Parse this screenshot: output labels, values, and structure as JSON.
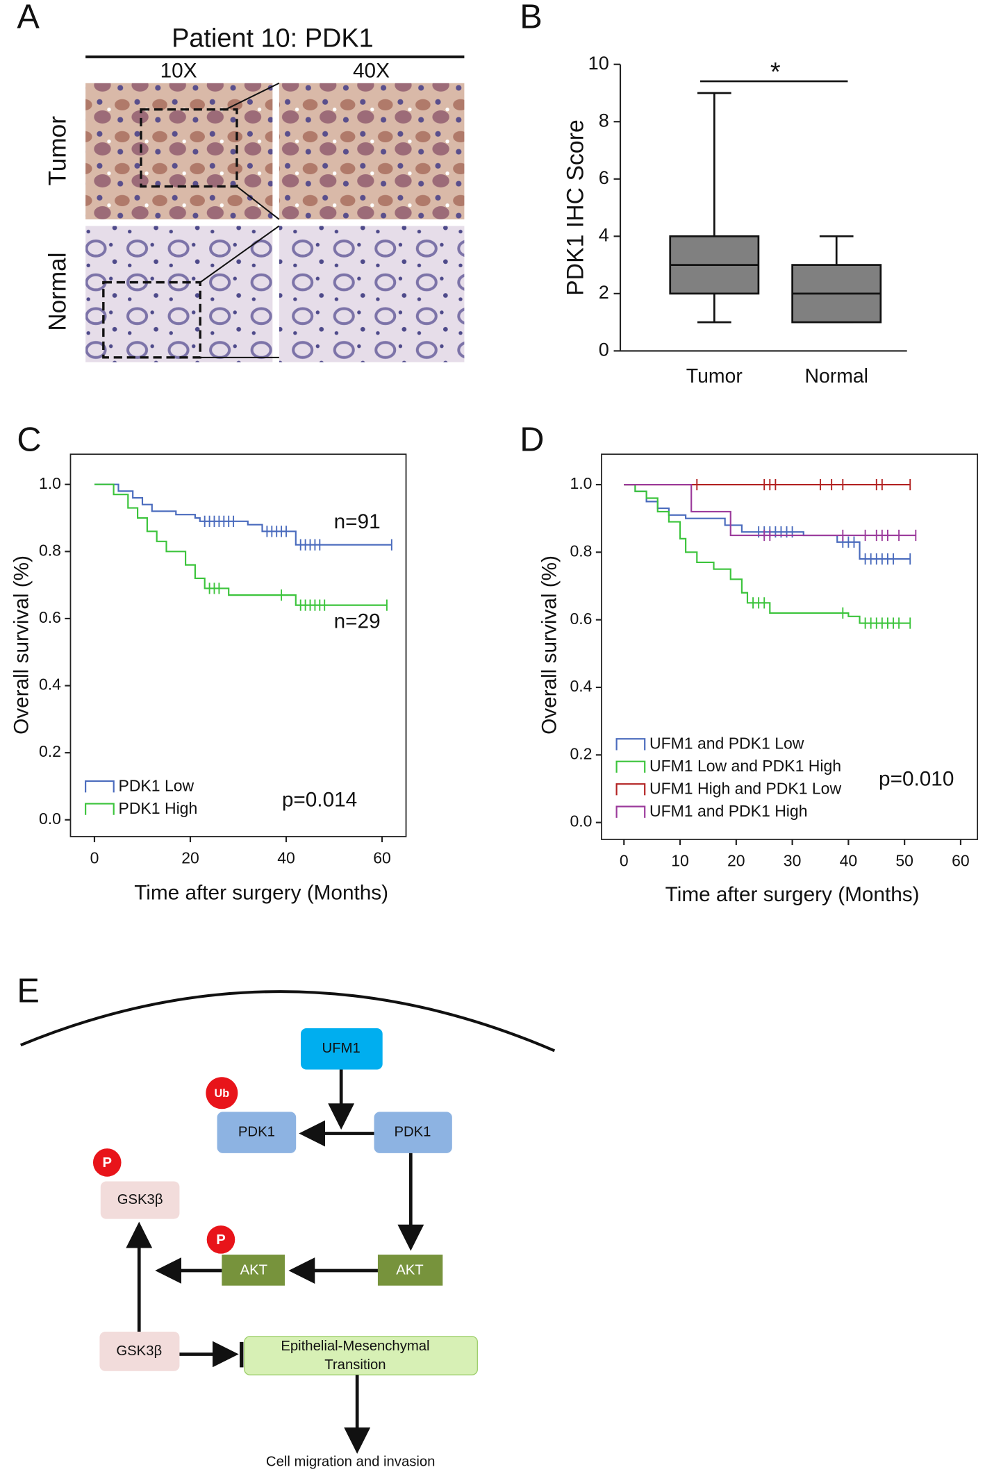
{
  "panel_labels": [
    "A",
    "B",
    "C",
    "D",
    "E"
  ],
  "histology": {
    "title": "Patient 10: PDK1",
    "columns": [
      "10X",
      "40X"
    ],
    "rows": [
      "Tumor",
      "Normal"
    ]
  },
  "chart_data": [
    {
      "type": "box",
      "y_label": "PDK1 IHC Score",
      "categories": [
        "Tumor",
        "Normal"
      ],
      "boxes": [
        {
          "min": 1,
          "q1": 2,
          "median": 3,
          "q3": 4,
          "max": 9
        },
        {
          "min": 1,
          "q1": 1,
          "median": 2,
          "q3": 3,
          "max": 4
        }
      ],
      "color": "#808080",
      "ylim": [
        0,
        10
      ],
      "yticks": [
        0,
        2,
        4,
        6,
        8,
        10
      ],
      "annotation": "*"
    },
    {
      "type": "survival",
      "x_label": "Time after surgery (Months)",
      "y_label": "Overall survival (%)",
      "xlim": [
        -5,
        65
      ],
      "xticks": [
        0,
        20,
        40,
        60
      ],
      "ylim": [
        -0.05,
        1.09
      ],
      "yticks": [
        {
          "value": 0,
          "label": "0.0"
        },
        {
          "value": 0.2,
          "label": "0.2"
        },
        {
          "value": 0.4,
          "label": "0.4"
        },
        {
          "value": 0.6,
          "label": "0.6"
        },
        {
          "value": 0.8,
          "label": "0.8"
        },
        {
          "value": 1,
          "label": "1.0"
        }
      ],
      "legend": "lower left",
      "p_value": "p=0.014",
      "series": [
        {
          "name": "PDK1 Low",
          "n_label": "n=91",
          "color": "#4a6bbd",
          "x": [
            0,
            5,
            8,
            10,
            12,
            17,
            21,
            22,
            32,
            35,
            42,
            62
          ],
          "values": [
            1,
            0.98,
            0.96,
            0.94,
            0.92,
            0.91,
            0.9,
            0.89,
            0.88,
            0.86,
            0.82,
            0.82
          ],
          "censored": [
            23,
            24,
            25,
            26,
            27,
            28,
            29,
            36,
            37,
            38,
            39,
            40,
            43,
            44,
            45,
            46,
            47,
            62
          ]
        },
        {
          "name": "PDK1 High",
          "n_label": "n=29",
          "color": "#3cc43c",
          "x": [
            0,
            4,
            7,
            9,
            11,
            13,
            15,
            19,
            21,
            23,
            28,
            42,
            61
          ],
          "values": [
            1,
            0.97,
            0.93,
            0.9,
            0.86,
            0.83,
            0.8,
            0.76,
            0.72,
            0.69,
            0.67,
            0.64,
            0.64
          ],
          "censored": [
            24,
            25,
            26,
            39,
            43,
            44,
            45,
            46,
            47,
            48,
            61
          ]
        }
      ]
    },
    {
      "type": "survival",
      "x_label": "Time after surgery (Months)",
      "y_label": "Overall survival (%)",
      "xlim": [
        -4,
        63
      ],
      "xticks": [
        0,
        10,
        20,
        30,
        40,
        50,
        60
      ],
      "ylim": [
        -0.05,
        1.09
      ],
      "yticks": [
        {
          "value": 0,
          "label": "0.0"
        },
        {
          "value": 0.2,
          "label": "0.2"
        },
        {
          "value": 0.4,
          "label": "0.4"
        },
        {
          "value": 0.6,
          "label": "0.6"
        },
        {
          "value": 0.8,
          "label": "0.8"
        },
        {
          "value": 1,
          "label": "1.0"
        }
      ],
      "legend": "lower left",
      "p_value": "p=0.010",
      "series": [
        {
          "name": "UFM1 and PDK1 Low",
          "color": "#4a6bbd",
          "x": [
            0,
            2,
            4,
            6,
            8,
            11,
            18,
            21,
            32,
            38,
            42,
            51
          ],
          "values": [
            1,
            0.98,
            0.95,
            0.93,
            0.91,
            0.9,
            0.88,
            0.86,
            0.85,
            0.83,
            0.78,
            0.78
          ],
          "censored": [
            24,
            25,
            26,
            27,
            28,
            29,
            30,
            39,
            40,
            41,
            43,
            44,
            45,
            46,
            47,
            48,
            51
          ]
        },
        {
          "name": "UFM1 Low and PDK1 High",
          "color": "#3cc43c",
          "x": [
            0,
            2,
            4,
            6,
            8,
            10,
            11,
            13,
            16,
            19,
            21,
            22,
            26,
            40,
            42,
            51
          ],
          "values": [
            1,
            0.98,
            0.96,
            0.92,
            0.89,
            0.84,
            0.8,
            0.77,
            0.75,
            0.72,
            0.68,
            0.65,
            0.62,
            0.61,
            0.59,
            0.59
          ],
          "censored": [
            23,
            24,
            25,
            39,
            43,
            44,
            45,
            46,
            47,
            48,
            49,
            51
          ]
        },
        {
          "name": "UFM1 High and PDK1 Low",
          "color": "#b22222",
          "x": [
            0,
            51
          ],
          "values": [
            1,
            1
          ],
          "censored": [
            13,
            25,
            26,
            27,
            35,
            37,
            39,
            45,
            46,
            51
          ]
        },
        {
          "name": "UFM1 and PDK1 High",
          "color": "#9b3a9b",
          "x": [
            0,
            12,
            19,
            52
          ],
          "values": [
            1,
            0.92,
            0.85,
            0.85
          ],
          "censored": [
            25,
            26,
            39,
            43,
            45,
            46,
            47,
            49,
            52
          ]
        }
      ]
    }
  ],
  "diagram": {
    "nodes": [
      {
        "label": "UFM1"
      },
      {
        "label": "PDK1"
      },
      {
        "label": "PDK1"
      },
      {
        "label": "GSK3β"
      },
      {
        "label": "AKT"
      },
      {
        "label": "AKT"
      },
      {
        "label": "GSK3β"
      },
      {
        "label": [
          "Epithelial-Mesenchymal",
          "Transition"
        ]
      },
      {
        "label": "Cell migration and invasion"
      }
    ],
    "badges": [
      "Ub",
      "P",
      "P"
    ]
  }
}
